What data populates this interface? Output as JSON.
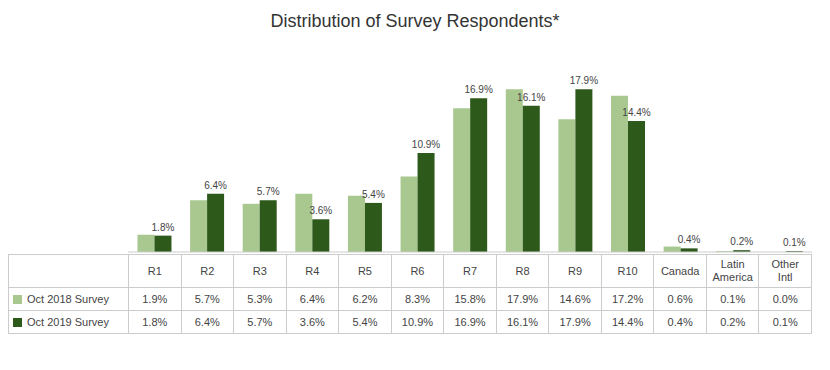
{
  "chart_data": {
    "type": "bar",
    "title": "Distribution of Survey Respondents*",
    "categories": [
      "R1",
      "R2",
      "R3",
      "R4",
      "R5",
      "R6",
      "R7",
      "R8",
      "R9",
      "R10",
      "Canada",
      "Latin\nAmerica",
      "Other\nIntl"
    ],
    "series": [
      {
        "name": "Oct 2018 Survey",
        "color": "#a8c890",
        "values": [
          1.9,
          5.7,
          5.3,
          6.4,
          6.2,
          8.3,
          15.8,
          17.9,
          14.6,
          17.2,
          0.6,
          0.1,
          0.0
        ],
        "value_labels": [
          "1.9%",
          "5.7%",
          "5.3%",
          "6.4%",
          "6.2%",
          "8.3%",
          "15.8%",
          "17.9%",
          "14.6%",
          "17.2%",
          "0.6%",
          "0.1%",
          "0.0%"
        ]
      },
      {
        "name": "Oct 2019 Survey",
        "color": "#2d5a1b",
        "values": [
          1.8,
          6.4,
          5.7,
          3.6,
          5.4,
          10.9,
          16.9,
          16.1,
          17.9,
          14.4,
          0.4,
          0.2,
          0.1
        ],
        "value_labels": [
          "1.8%",
          "6.4%",
          "5.7%",
          "3.6%",
          "5.4%",
          "10.9%",
          "16.9%",
          "16.1%",
          "17.9%",
          "14.4%",
          "0.4%",
          "0.2%",
          "0.1%"
        ],
        "data_labels": true
      }
    ],
    "ylim": [
      0,
      22
    ],
    "tick_labels": "x",
    "grid": false
  }
}
